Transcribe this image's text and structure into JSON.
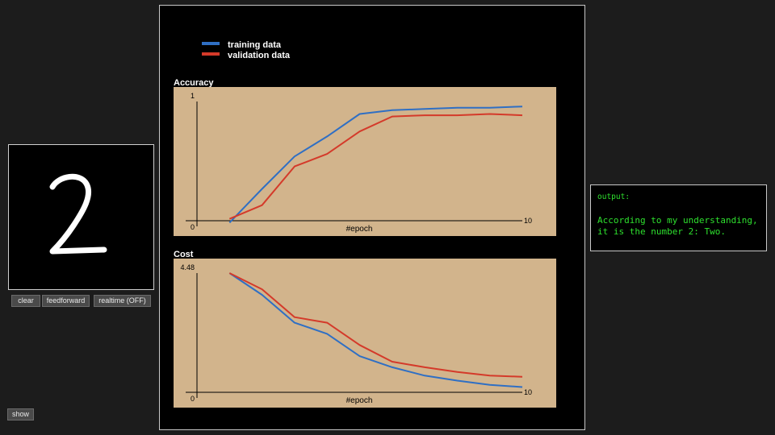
{
  "drawing": {
    "digit_glyph": "2"
  },
  "buttons": {
    "clear": "clear",
    "feedforward": "feedforward",
    "realtime": "realtime (OFF)",
    "show": "show"
  },
  "legend": {
    "training": "training data",
    "validation": "validation data"
  },
  "output": {
    "label": "output:",
    "line1": "According to my understanding,",
    "line2": "it is the number 2: Two."
  },
  "colors": {
    "training": "#2f6fc4",
    "validation": "#d43a2a",
    "plot_bg": "#d2b48c",
    "output_text": "#2ee02e"
  },
  "chart_data": [
    {
      "type": "line",
      "title": "Accuracy",
      "xlabel": "#epoch",
      "ylabel": "",
      "xlim": [
        0,
        10
      ],
      "ylim": [
        0,
        1
      ],
      "x_tick_labels": [
        "10"
      ],
      "y_tick_labels": [
        "0",
        "1"
      ],
      "x": [
        1,
        2,
        3,
        4,
        5,
        6,
        7,
        8,
        9,
        10
      ],
      "series": [
        {
          "name": "training data",
          "values": [
            0.03,
            0.3,
            0.56,
            0.72,
            0.9,
            0.93,
            0.94,
            0.95,
            0.95,
            0.96
          ]
        },
        {
          "name": "validation data",
          "values": [
            0.06,
            0.17,
            0.48,
            0.58,
            0.76,
            0.88,
            0.89,
            0.89,
            0.9,
            0.89
          ]
        }
      ]
    },
    {
      "type": "line",
      "title": "Cost",
      "xlabel": "#epoch",
      "ylabel": "",
      "xlim": [
        0,
        10
      ],
      "ylim": [
        0,
        4.48
      ],
      "x_tick_labels": [
        "10"
      ],
      "y_tick_labels": [
        "0",
        "4.48"
      ],
      "x": [
        1,
        2,
        3,
        4,
        5,
        6,
        7,
        8,
        9,
        10
      ],
      "series": [
        {
          "name": "training data",
          "values": [
            4.48,
            3.7,
            2.7,
            2.3,
            1.5,
            1.1,
            0.8,
            0.62,
            0.47,
            0.39
          ]
        },
        {
          "name": "validation data",
          "values": [
            4.48,
            3.9,
            2.9,
            2.7,
            1.9,
            1.3,
            1.1,
            0.93,
            0.8,
            0.76
          ]
        }
      ]
    }
  ]
}
